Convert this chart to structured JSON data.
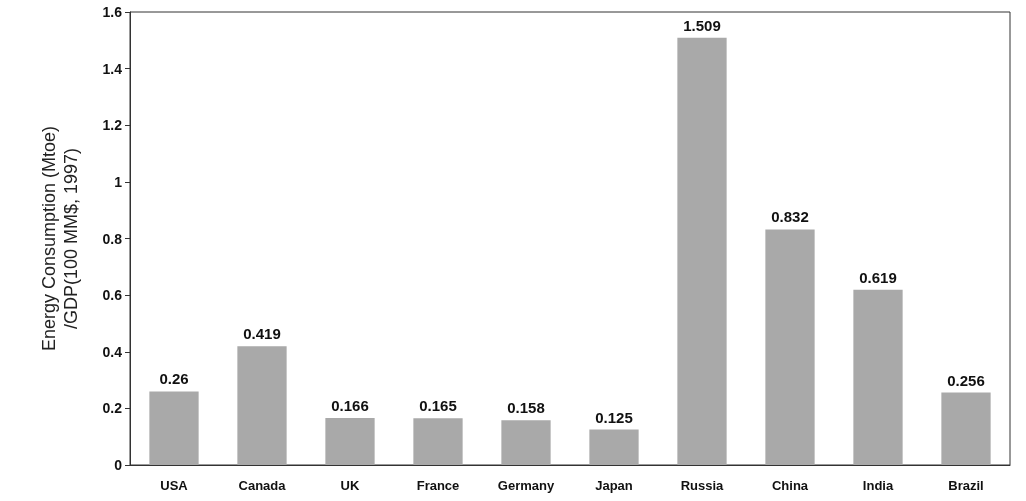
{
  "chart_data": {
    "type": "bar",
    "ylabel": "Energy Consumption (Mtoe)\n/GDP(100 MM$, 1997)",
    "categories": [
      "USA",
      "Canada",
      "UK",
      "France",
      "Germany",
      "Japan",
      "Russia",
      "China",
      "India",
      "Brazil"
    ],
    "values": [
      0.26,
      0.419,
      0.166,
      0.165,
      0.158,
      0.125,
      1.509,
      0.832,
      0.619,
      0.256
    ],
    "color": "#a9a9a9",
    "ylim": [
      0,
      1.6
    ],
    "yticks": [
      0,
      0.2,
      0.4,
      0.6,
      0.8,
      1,
      1.2,
      1.4,
      1.6
    ],
    "data_labels": true,
    "grid": false
  }
}
